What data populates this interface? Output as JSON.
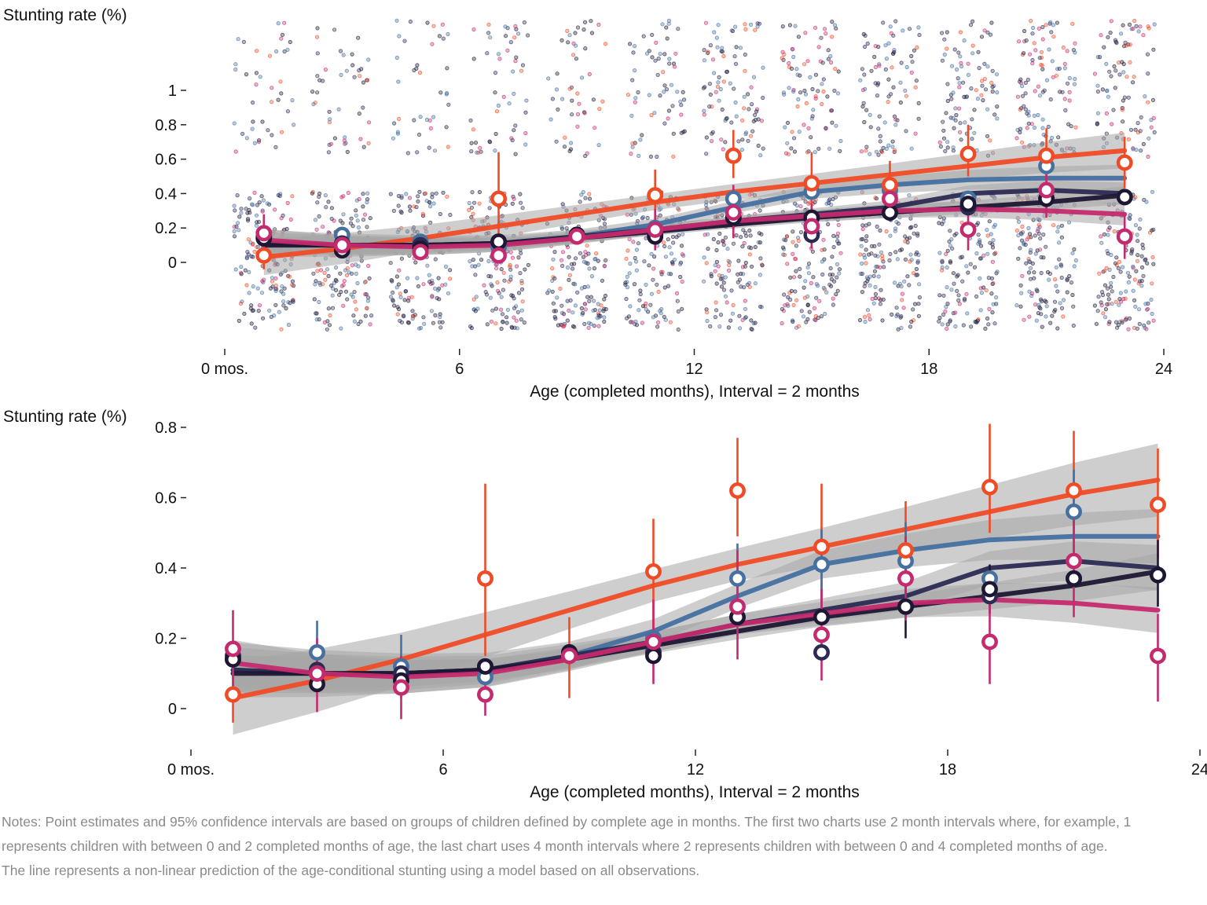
{
  "colors": {
    "orange": "#ef4b26",
    "blue": "#4670a0",
    "navy": "#2b2a52",
    "dark": "#1e1733",
    "magenta": "#c42a6e",
    "band": "#a6a6a6"
  },
  "chart_data": [
    {
      "type": "scatter",
      "ylabel": "Stunting rate (%)",
      "xlabel": "Age (completed months), Interval = 2 months",
      "xlim": [
        0,
        24
      ],
      "ylim": [
        0,
        1
      ],
      "xticks": [
        "0 mos.",
        "6",
        "12",
        "18",
        "24"
      ],
      "yticks": [
        "0",
        "0.2",
        "0.4",
        "0.6",
        "0.8",
        "1"
      ],
      "grid": false,
      "legend": "none",
      "jittered_raw_observations": true,
      "x": [
        1,
        3,
        5,
        7,
        9,
        11,
        13,
        15,
        17,
        19,
        21,
        23
      ],
      "series": [
        {
          "color": "orange",
          "values": [
            0.04,
            0.1,
            0.06,
            0.37,
            0.15,
            0.39,
            0.62,
            0.46,
            0.45,
            0.63,
            0.62,
            0.58
          ],
          "ci_low": [
            -0.04,
            null,
            null,
            0.15,
            null,
            0.22,
            0.49,
            0.29,
            0.34,
            0.5,
            0.48,
            0.43
          ],
          "ci_high": [
            0.12,
            null,
            null,
            0.64,
            null,
            0.54,
            0.77,
            0.64,
            0.59,
            0.8,
            0.78,
            0.73
          ],
          "fit": [
            0.03,
            0.08,
            0.14,
            0.21,
            0.28,
            0.35,
            0.41,
            0.46,
            0.51,
            0.56,
            0.61,
            0.65
          ]
        },
        {
          "color": "blue",
          "values": [
            0.14,
            0.16,
            0.12,
            0.09,
            0.16,
            0.2,
            0.37,
            0.41,
            0.42,
            0.37,
            0.56,
            0.38
          ],
          "fit": [
            0.11,
            0.1,
            0.1,
            0.11,
            0.15,
            0.22,
            0.32,
            0.41,
            0.45,
            0.48,
            0.49,
            0.49
          ]
        },
        {
          "color": "navy",
          "values": [
            0.15,
            0.11,
            0.1,
            0.12,
            0.16,
            0.16,
            0.26,
            0.16,
            0.29,
            0.32,
            0.37,
            0.38
          ],
          "fit": [
            0.11,
            0.1,
            0.1,
            0.11,
            0.15,
            0.19,
            0.24,
            0.28,
            0.32,
            0.4,
            0.42,
            0.4
          ]
        },
        {
          "color": "dark",
          "values": [
            0.14,
            0.07,
            0.08,
            0.12,
            0.16,
            0.15,
            0.26,
            0.26,
            0.29,
            0.34,
            0.37,
            0.38
          ],
          "fit": [
            0.1,
            0.1,
            0.1,
            0.11,
            0.14,
            0.18,
            0.22,
            0.26,
            0.29,
            0.32,
            0.35,
            0.39
          ]
        },
        {
          "color": "magenta",
          "values": [
            0.17,
            0.1,
            0.06,
            0.04,
            0.15,
            0.19,
            0.29,
            0.21,
            0.37,
            0.19,
            0.42,
            0.15
          ],
          "ci_low": [
            0.06,
            null,
            null,
            null,
            null,
            0.07,
            0.14,
            0.08,
            null,
            0.07,
            0.26,
            0.02
          ],
          "ci_high": [
            0.28,
            null,
            null,
            null,
            null,
            0.31,
            0.45,
            0.34,
            null,
            0.33,
            0.58,
            0.27
          ],
          "fit": [
            0.13,
            0.1,
            0.09,
            0.1,
            0.14,
            0.19,
            0.24,
            0.27,
            0.3,
            0.31,
            0.3,
            0.28
          ]
        }
      ]
    },
    {
      "type": "line",
      "ylabel": "Stunting rate (%)",
      "xlabel": "Age (completed months), Interval = 2 months",
      "xlim": [
        0,
        24
      ],
      "ylim": [
        0,
        0.8
      ],
      "xticks": [
        "0 mos.",
        "6",
        "12",
        "18",
        "24"
      ],
      "yticks": [
        "0",
        "0.2",
        "0.4",
        "0.6",
        "0.8"
      ],
      "grid": false,
      "legend": "none",
      "x": [
        1,
        3,
        5,
        7,
        9,
        11,
        13,
        15,
        17,
        19,
        21,
        23
      ],
      "series": [
        {
          "color": "orange",
          "values": [
            0.04,
            0.1,
            0.06,
            0.37,
            0.15,
            0.39,
            0.62,
            0.46,
            0.45,
            0.63,
            0.62,
            0.58
          ],
          "ci_low": [
            -0.04,
            null,
            null,
            0.15,
            0.03,
            0.22,
            0.49,
            0.29,
            0.34,
            0.5,
            0.48,
            0.43
          ],
          "ci_high": [
            0.12,
            null,
            null,
            0.64,
            0.26,
            0.54,
            0.77,
            0.64,
            0.59,
            0.81,
            0.79,
            0.74
          ],
          "fit": [
            0.03,
            0.08,
            0.14,
            0.21,
            0.28,
            0.35,
            0.41,
            0.46,
            0.51,
            0.56,
            0.61,
            0.65
          ]
        },
        {
          "color": "blue",
          "values": [
            0.14,
            0.16,
            0.12,
            0.09,
            0.16,
            0.2,
            0.37,
            0.41,
            0.42,
            0.37,
            0.56,
            0.38
          ],
          "ci_low": [
            null,
            0.07,
            0.03,
            null,
            null,
            null,
            0.25,
            0.29,
            0.3,
            null,
            0.42,
            null
          ],
          "ci_high": [
            null,
            0.25,
            0.21,
            null,
            null,
            null,
            0.47,
            0.51,
            0.53,
            null,
            0.68,
            null
          ],
          "fit": [
            0.11,
            0.1,
            0.1,
            0.11,
            0.15,
            0.22,
            0.32,
            0.41,
            0.45,
            0.48,
            0.49,
            0.49
          ]
        },
        {
          "color": "navy",
          "values": [
            0.15,
            0.11,
            0.1,
            0.12,
            0.16,
            0.16,
            0.26,
            0.16,
            0.29,
            0.32,
            0.37,
            0.38
          ],
          "fit": [
            0.11,
            0.1,
            0.1,
            0.11,
            0.15,
            0.19,
            0.24,
            0.28,
            0.32,
            0.4,
            0.42,
            0.4
          ]
        },
        {
          "color": "dark",
          "values": [
            0.14,
            0.07,
            0.08,
            0.12,
            0.16,
            0.15,
            0.26,
            0.26,
            0.29,
            0.34,
            0.37,
            0.38
          ],
          "ci_low": [
            null,
            null,
            null,
            null,
            null,
            null,
            null,
            null,
            0.2,
            0.27,
            null,
            0.29
          ],
          "ci_high": [
            null,
            null,
            null,
            null,
            null,
            null,
            null,
            null,
            0.38,
            0.41,
            null,
            0.48
          ],
          "fit": [
            0.1,
            0.1,
            0.1,
            0.11,
            0.14,
            0.18,
            0.22,
            0.26,
            0.29,
            0.32,
            0.35,
            0.39
          ]
        },
        {
          "color": "magenta",
          "values": [
            0.17,
            0.1,
            0.06,
            0.04,
            0.15,
            0.19,
            0.29,
            0.21,
            0.37,
            0.19,
            0.42,
            0.15
          ],
          "ci_low": [
            0.06,
            -0.01,
            -0.03,
            -0.02,
            null,
            0.07,
            0.14,
            0.08,
            0.25,
            0.07,
            0.26,
            0.02
          ],
          "ci_high": [
            0.28,
            0.2,
            0.15,
            0.1,
            null,
            0.31,
            0.45,
            0.34,
            0.49,
            0.33,
            0.58,
            0.27
          ],
          "fit": [
            0.13,
            0.1,
            0.09,
            0.1,
            0.14,
            0.19,
            0.24,
            0.27,
            0.3,
            0.31,
            0.3,
            0.28
          ]
        }
      ]
    }
  ],
  "notes": "Notes: Point estimates and 95% confidence intervals are based on groups of children defined by complete age in months. The first two charts use 2 month intervals where, for example, 1 represents children with between 0 and 2 completed months of age, the last chart uses 4 month intervals where 2 represents children with between 0 and 4 completed months of age. The line represents a non-linear prediction of the age-conditional stunting using a model based on all observations."
}
